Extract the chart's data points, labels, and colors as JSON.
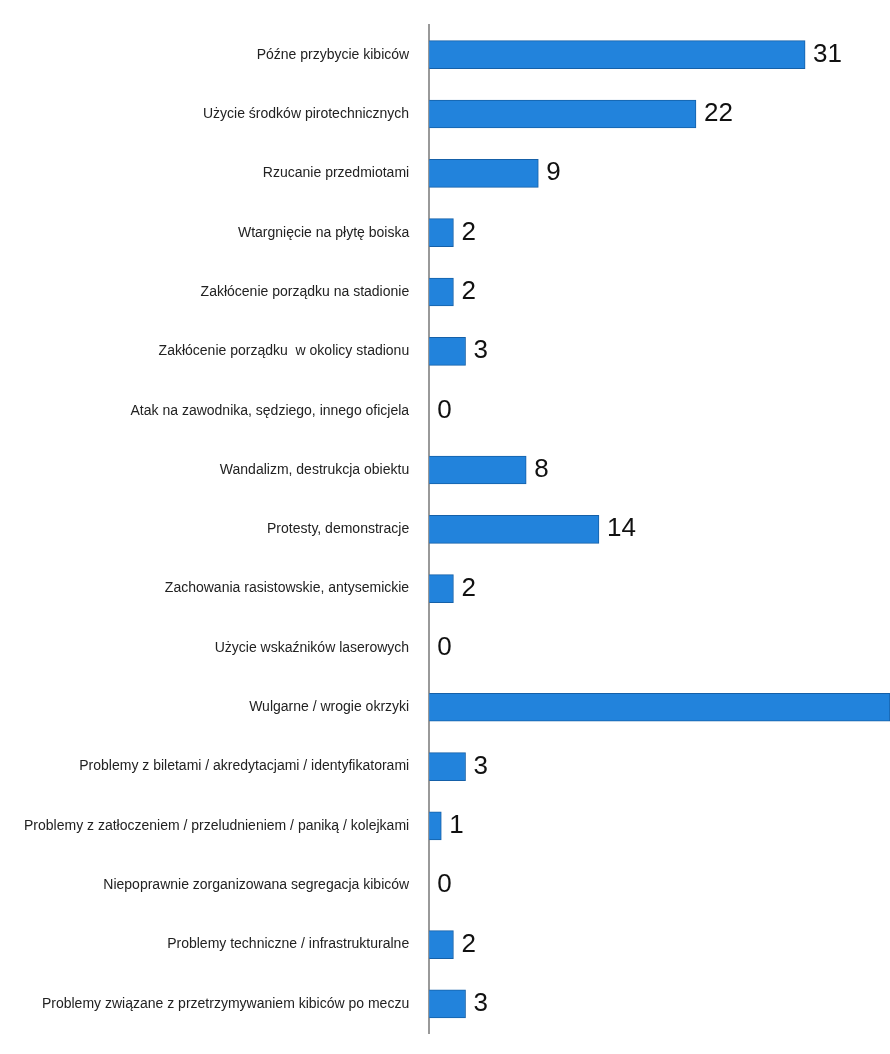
{
  "chart_data": {
    "type": "bar",
    "orientation": "horizontal",
    "categories": [
      "Późne przybycie kibiców",
      "Użycie środków pirotechnicznych",
      "Rzucanie przedmiotami",
      "Wtargnięcie na płytę boiska",
      "Zakłócenie porządku na stadionie",
      "Zakłócenie porządku  w okolicy stadionu",
      "Atak na zawodnika, sędziego, innego oficjela",
      "Wandalizm, destrukcja obiektu",
      "Protesty, demonstracje",
      "Zachowania rasistowskie, antysemickie",
      "Użycie wskaźników laserowych",
      "Wulgarne / wrogie okrzyki",
      "Problemy z biletami / akredytacjami / identyfikatorami",
      "Problemy z zatłoczeniem / przeludnieniem / paniką / kolejkami",
      "Niepoprawnie zorganizowana segregacja kibiców",
      "Problemy techniczne / infrastrukturalne",
      "Problemy związane z przetrzymywaniem kibiców po meczu"
    ],
    "values": [
      31,
      22,
      9,
      2,
      2,
      3,
      0,
      8,
      14,
      2,
      0,
      38,
      3,
      1,
      0,
      2,
      3
    ],
    "value_labels": [
      "31",
      "22",
      "9",
      "2",
      "2",
      "3",
      "0",
      "8",
      "14",
      "2",
      "0",
      null,
      "3",
      "1",
      "0",
      "2",
      "3"
    ],
    "color": "#2283dc",
    "xlim": [
      0,
      38
    ],
    "tick_labels": "y",
    "grid": false,
    "legend": false
  }
}
